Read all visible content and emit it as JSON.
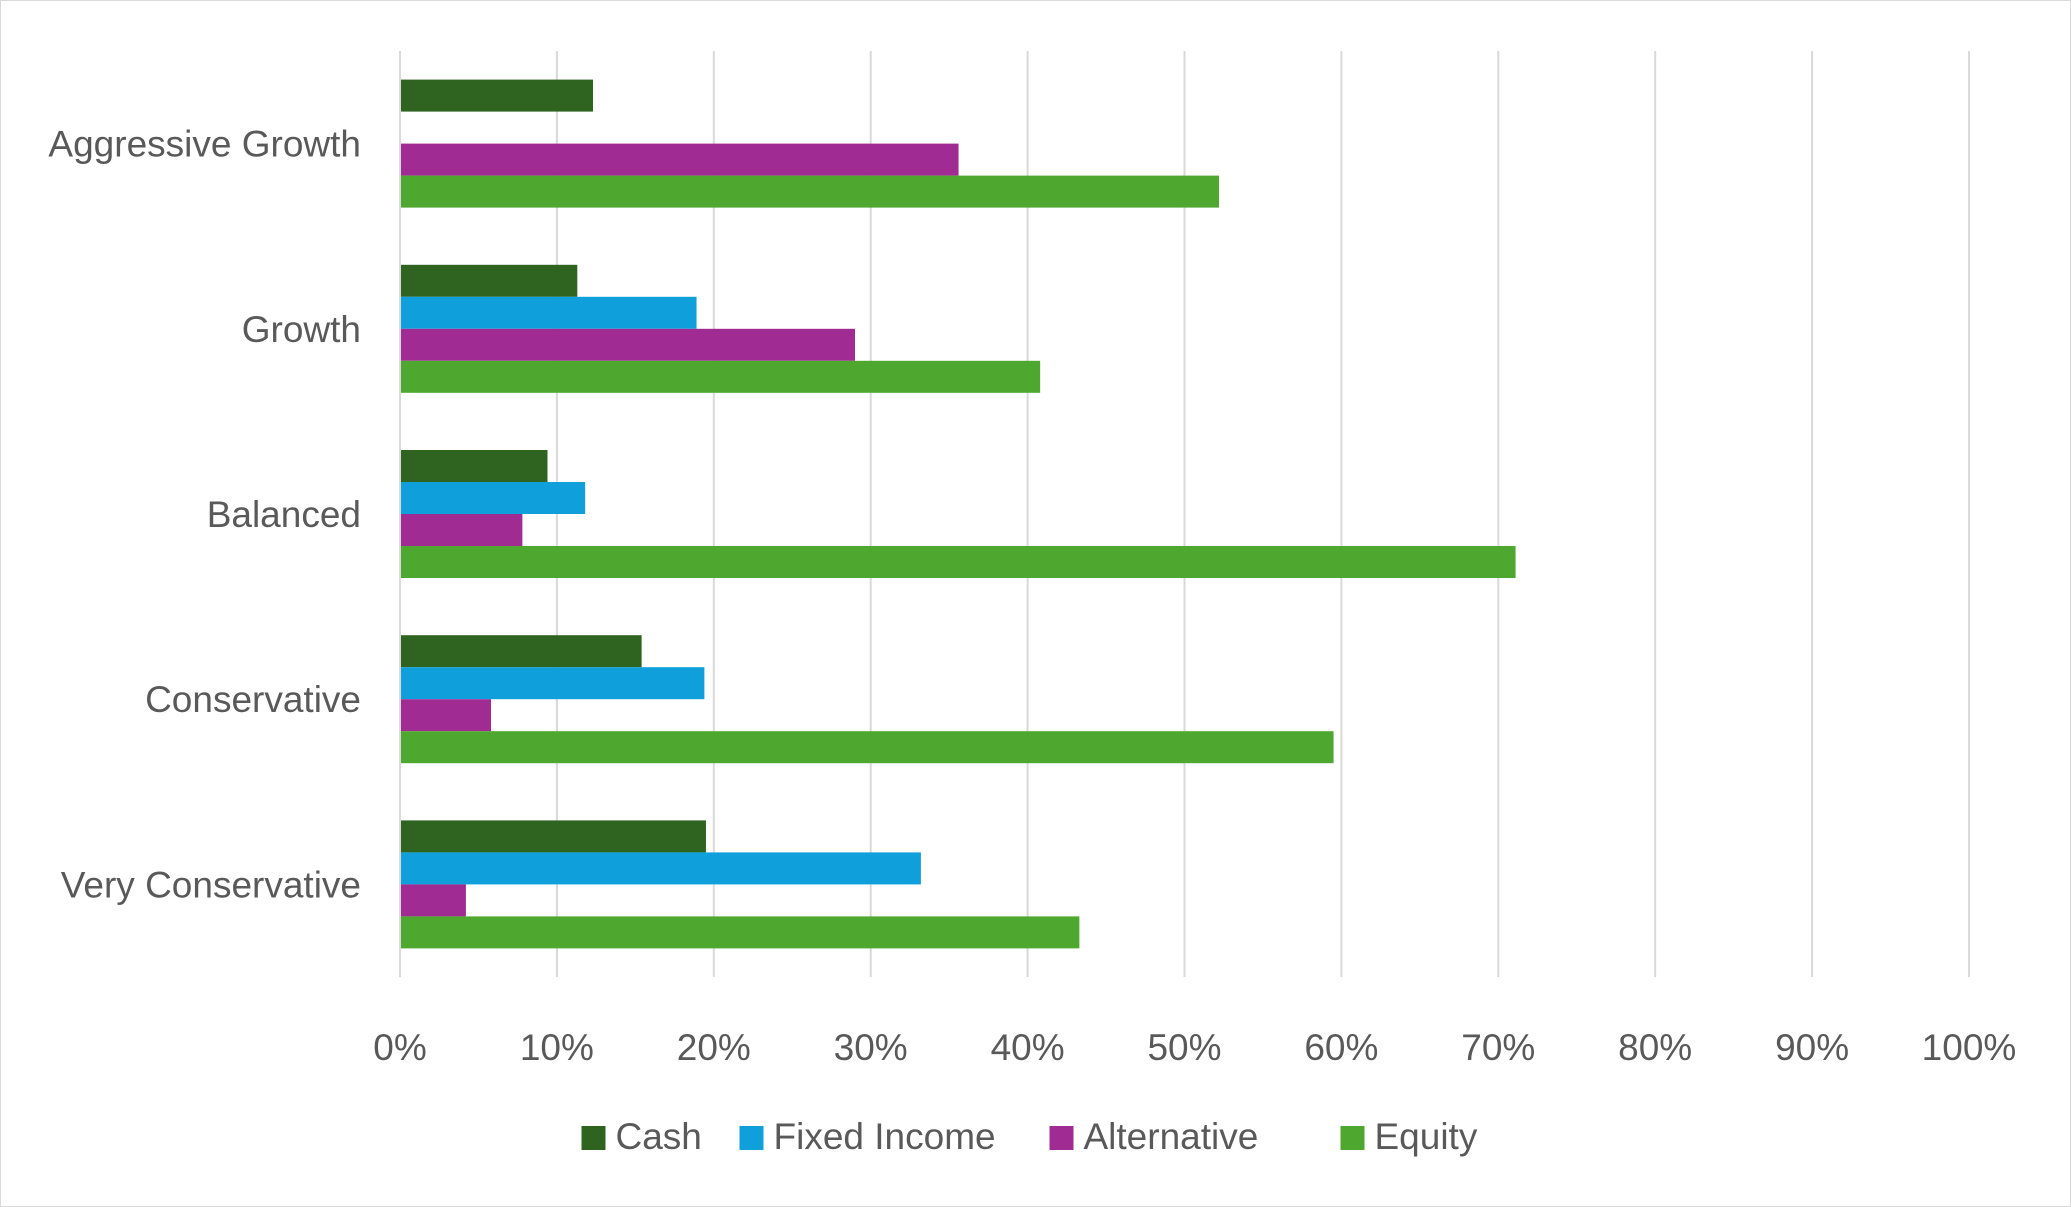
{
  "chart_data": {
    "type": "bar",
    "orientation": "horizontal",
    "categories": [
      "Aggressive Growth",
      "Growth",
      "Balanced",
      "Conservative",
      "Very Conservative"
    ],
    "series": [
      {
        "name": "Cash",
        "color": "#2e6420",
        "values": [
          12.3,
          11.3,
          9.4,
          15.4,
          19.5
        ]
      },
      {
        "name": "Fixed Income",
        "color": "#0f9fda",
        "values": [
          0,
          18.9,
          11.8,
          19.4,
          33.2
        ]
      },
      {
        "name": "Alternative",
        "color": "#a02b93",
        "values": [
          35.6,
          29.0,
          7.8,
          5.8,
          4.2
        ]
      },
      {
        "name": "Equity",
        "color": "#4ea72e",
        "values": [
          52.2,
          40.8,
          71.1,
          59.5,
          43.3
        ]
      }
    ],
    "xlim": [
      0,
      100
    ],
    "x_ticks": [
      "0%",
      "10%",
      "20%",
      "30%",
      "40%",
      "50%",
      "60%",
      "70%",
      "80%",
      "90%",
      "100%"
    ],
    "grid": "vertical",
    "legend_position": "bottom"
  }
}
